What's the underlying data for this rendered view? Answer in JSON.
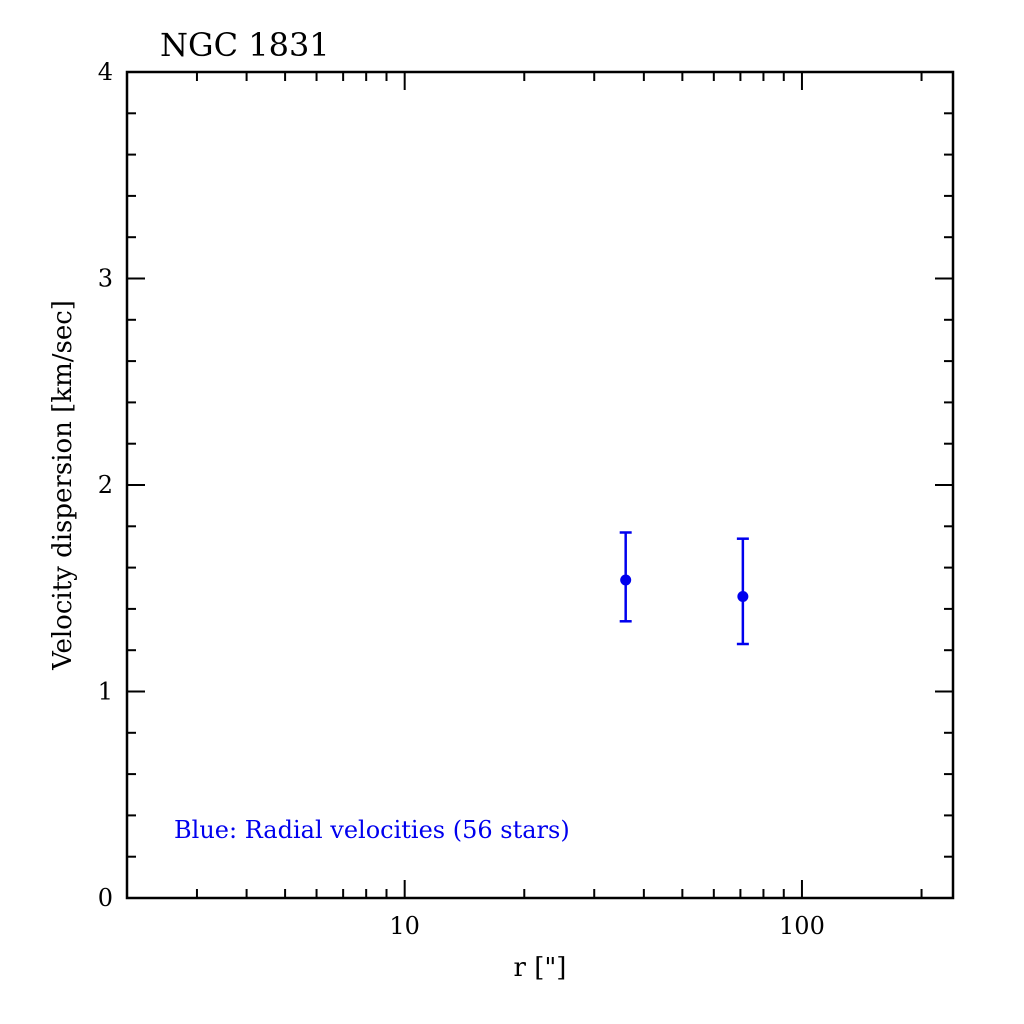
{
  "chart_data": {
    "type": "scatter",
    "title": "NGC 1831",
    "xlabel": "r [\"]",
    "ylabel": "Velocity dispersion [km/sec]",
    "x_scale": "log",
    "xlim": [
      2,
      240
    ],
    "ylim": [
      0,
      4
    ],
    "x_tick_labels": [
      {
        "value": 10,
        "label": "10"
      },
      {
        "value": 100,
        "label": "100"
      }
    ],
    "y_tick_labels": [
      {
        "value": 0,
        "label": "0"
      },
      {
        "value": 1,
        "label": "1"
      },
      {
        "value": 2,
        "label": "2"
      },
      {
        "value": 3,
        "label": "3"
      },
      {
        "value": 4,
        "label": "4"
      }
    ],
    "series": [
      {
        "color": "#0000ee",
        "points": [
          {
            "x": 36,
            "y": 1.54,
            "err_low": 1.34,
            "err_high": 1.77
          },
          {
            "x": 71,
            "y": 1.46,
            "err_low": 1.23,
            "err_high": 1.74
          }
        ]
      }
    ],
    "annotation": {
      "text": "Blue: Radial velocities (56 stars)",
      "color": "#0000ee"
    },
    "grid": false
  }
}
